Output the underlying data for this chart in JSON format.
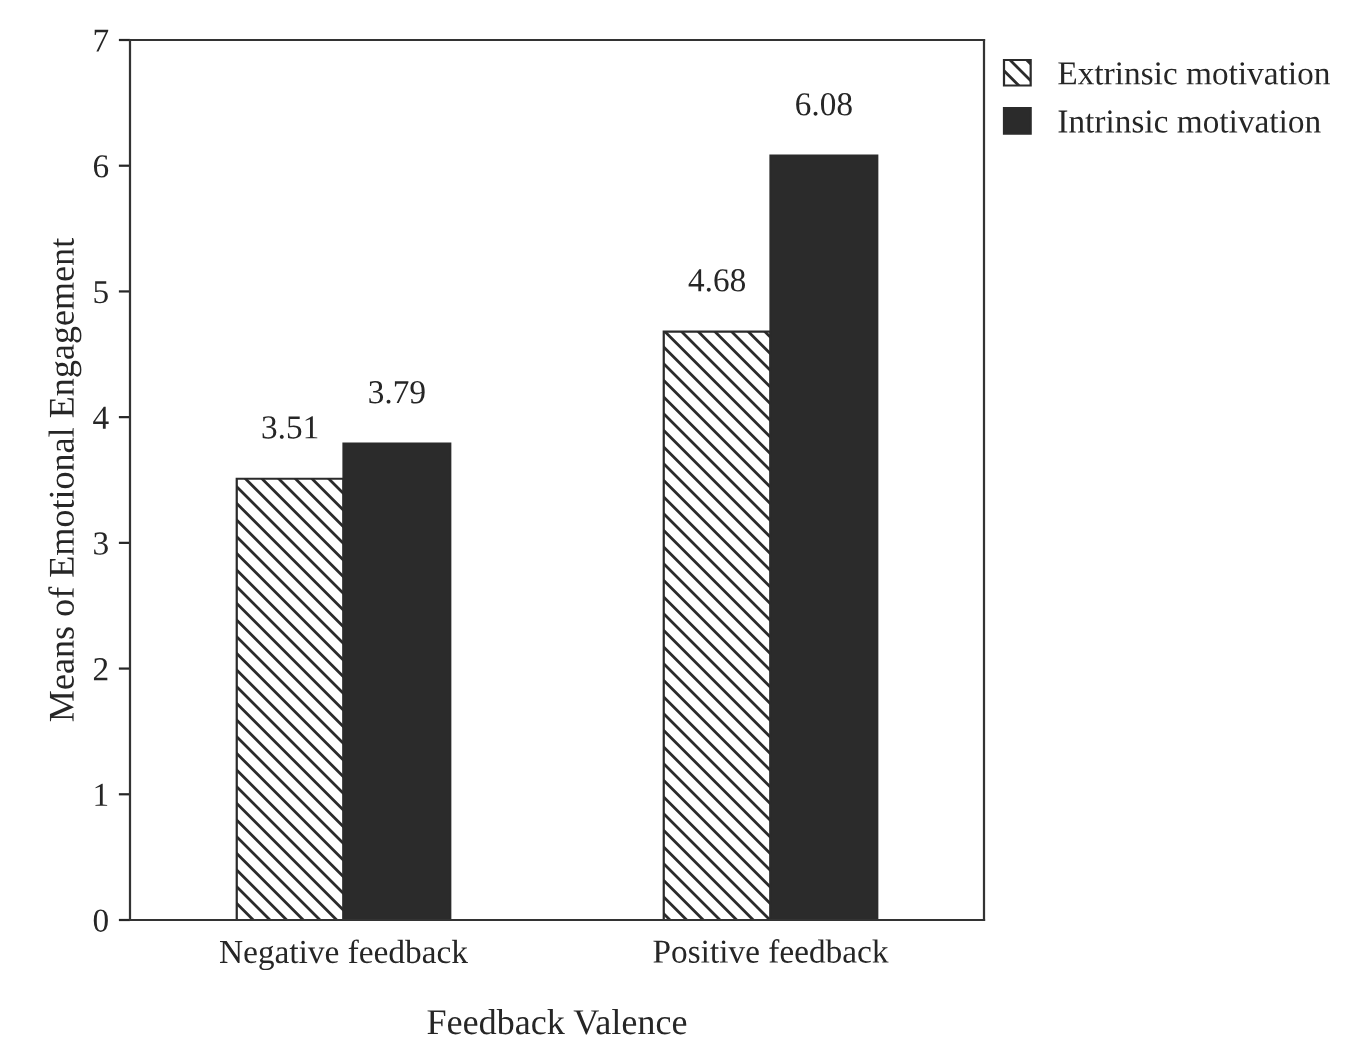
{
  "chart_data": {
    "type": "bar",
    "xlabel": "Feedback Valence",
    "ylabel": "Means of Emotional Engagement",
    "categories": [
      "Negative feedback",
      "Positive feedback"
    ],
    "series": [
      {
        "name": "Extrinsic motivation",
        "color": "#2b2b2b",
        "values": [
          3.51,
          4.68
        ]
      },
      {
        "name": "Intrinsic motivation",
        "color": "#2b2b2b",
        "values": [
          3.79,
          6.08
        ]
      }
    ],
    "ylim": [
      0,
      7
    ],
    "yticks": [
      0,
      1,
      2,
      3,
      4,
      5,
      6,
      7
    ],
    "grid": false,
    "legend": "top right",
    "data_labels": true
  }
}
